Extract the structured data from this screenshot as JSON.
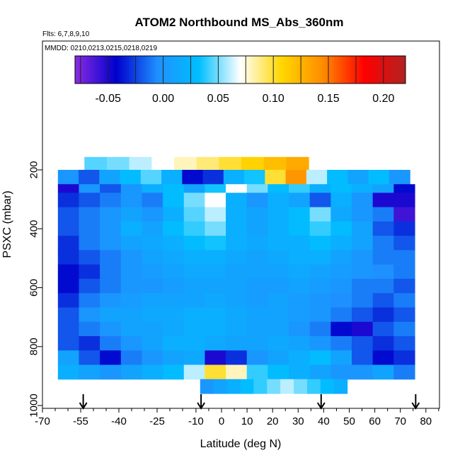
{
  "chart_data": {
    "type": "heatmap",
    "title": "ATOM2 Northbound MS_Abs_360nm",
    "flights_label": "Flts: 6,7,8,9,10",
    "dates_label": "MMDD: 0210,0213,0215,0218,0219",
    "xlabel": "Latitude (deg N)",
    "ylabel": "PSXC (mbar)",
    "xlim": [
      -70,
      85
    ],
    "ylim": [
      1000,
      0
    ],
    "x_ticks": [
      -70,
      -55,
      -40,
      -25,
      -10,
      0,
      10,
      20,
      30,
      40,
      50,
      60,
      70,
      80
    ],
    "x_minor_ticks": [
      -65,
      -60,
      -50,
      -45,
      -35,
      -30,
      -20,
      -15,
      -5,
      5,
      15,
      25,
      35,
      45,
      55,
      65,
      75,
      85
    ],
    "y_ticks": [
      200,
      400,
      600,
      800,
      1000
    ],
    "colorbar": {
      "min": -0.08,
      "max": 0.22,
      "ticks": [
        -0.05,
        0.0,
        0.05,
        0.1,
        0.15,
        0.2
      ],
      "tick_labels": [
        "-0.05",
        "0.00",
        "0.05",
        "0.10",
        "0.15",
        "0.20"
      ],
      "colors": [
        "#8a2be2",
        "#0000cd",
        "#1e90ff",
        "#00bfff",
        "#ffffff",
        "#ffd700",
        "#ff8c00",
        "#ff0000",
        "#b22222"
      ]
    },
    "arrows_latitude": [
      -54,
      -8,
      39,
      76
    ],
    "layers": [
      {
        "p_top": 175,
        "p_bot": 220,
        "x0": -57,
        "x1": 36,
        "values": [
          0.045,
          0.05,
          0.06,
          0.07,
          0.08,
          0.09,
          0.1,
          0.11,
          0.12,
          0.13
        ]
      },
      {
        "p_top": 220,
        "p_bot": 270,
        "x0": -68,
        "x1": 78,
        "values": [
          0.0,
          -0.02,
          0.01,
          0.03,
          0.045,
          0.02,
          -0.04,
          -0.03,
          0.02,
          0.035,
          0.1,
          0.14,
          0.06,
          0.03,
          0.01,
          0.03,
          0.0
        ]
      },
      {
        "p_top": 270,
        "p_bot": 300,
        "x0": -68,
        "x1": 80,
        "values": [
          -0.05,
          0.0,
          -0.02,
          0.0,
          0.02,
          0.03,
          0.01,
          0.035,
          0.07,
          0.05,
          0.03,
          0.04,
          0.02,
          0.03,
          0.02,
          0.01,
          -0.04
        ]
      },
      {
        "p_top": 300,
        "p_bot": 350,
        "x0": -68,
        "x1": 80,
        "values": [
          -0.03,
          -0.02,
          -0.01,
          0.0,
          -0.01,
          0.03,
          0.05,
          0.07,
          0.02,
          0.0,
          0.02,
          0.01,
          -0.02,
          0.02,
          0.0,
          -0.05,
          -0.05
        ]
      },
      {
        "p_top": 350,
        "p_bot": 400,
        "x0": -68,
        "x1": 80,
        "values": [
          -0.02,
          -0.01,
          0.0,
          0.01,
          0.0,
          0.02,
          0.045,
          0.06,
          0.02,
          0.01,
          0.02,
          0.03,
          0.05,
          0.015,
          0.0,
          -0.01,
          -0.06
        ]
      },
      {
        "p_top": 400,
        "p_bot": 450,
        "x0": -68,
        "x1": 80,
        "values": [
          -0.02,
          -0.01,
          0.0,
          0.02,
          0.01,
          0.03,
          0.04,
          0.05,
          0.02,
          0.01,
          0.02,
          0.03,
          0.04,
          0.03,
          0.01,
          -0.02,
          -0.03
        ]
      },
      {
        "p_top": 450,
        "p_bot": 500,
        "x0": -68,
        "x1": 80,
        "values": [
          -0.03,
          -0.01,
          0.0,
          0.01,
          0.015,
          0.02,
          0.03,
          0.035,
          0.02,
          0.015,
          0.02,
          0.02,
          0.03,
          0.02,
          0.01,
          -0.01,
          -0.02
        ]
      },
      {
        "p_top": 500,
        "p_bot": 550,
        "x0": -68,
        "x1": 80,
        "values": [
          -0.03,
          -0.02,
          -0.01,
          0.0,
          0.01,
          0.015,
          0.02,
          0.02,
          0.015,
          0.01,
          0.015,
          0.02,
          0.02,
          0.01,
          0.0,
          -0.01,
          -0.01
        ]
      },
      {
        "p_top": 550,
        "p_bot": 600,
        "x0": -68,
        "x1": 80,
        "values": [
          -0.04,
          -0.03,
          -0.01,
          0.0,
          0.005,
          0.01,
          0.015,
          0.015,
          0.01,
          0.01,
          0.01,
          0.015,
          0.01,
          0.005,
          0.0,
          -0.005,
          -0.01
        ]
      },
      {
        "p_top": 600,
        "p_bot": 650,
        "x0": -68,
        "x1": 80,
        "values": [
          -0.04,
          -0.02,
          -0.01,
          0.0,
          0.0,
          0.005,
          0.01,
          0.01,
          0.01,
          0.005,
          0.005,
          0.01,
          0.005,
          0.0,
          -0.01,
          -0.01,
          -0.02
        ]
      },
      {
        "p_top": 650,
        "p_bot": 700,
        "x0": -68,
        "x1": 80,
        "values": [
          -0.03,
          -0.01,
          0.0,
          0.005,
          0.01,
          0.01,
          0.01,
          0.015,
          0.01,
          0.005,
          0.01,
          0.005,
          0.0,
          -0.005,
          -0.01,
          -0.02,
          -0.01
        ]
      },
      {
        "p_top": 700,
        "p_bot": 750,
        "x0": -68,
        "x1": 80,
        "values": [
          -0.02,
          0.0,
          0.01,
          0.01,
          0.015,
          0.015,
          0.02,
          0.02,
          0.015,
          0.01,
          0.01,
          0.005,
          0.0,
          -0.01,
          -0.02,
          -0.03,
          -0.02
        ]
      },
      {
        "p_top": 750,
        "p_bot": 800,
        "x0": -68,
        "x1": 80,
        "values": [
          -0.02,
          -0.01,
          0.0,
          0.01,
          0.01,
          0.015,
          0.02,
          0.02,
          0.015,
          0.01,
          0.01,
          0.0,
          -0.01,
          -0.04,
          -0.05,
          -0.02,
          -0.01
        ]
      },
      {
        "p_top": 800,
        "p_bot": 850,
        "x0": -68,
        "x1": 80,
        "values": [
          -0.02,
          -0.03,
          -0.01,
          0.0,
          0.01,
          0.02,
          0.02,
          0.015,
          0.01,
          0.01,
          0.015,
          0.01,
          0.0,
          -0.01,
          -0.02,
          -0.03,
          -0.02
        ]
      },
      {
        "p_top": 850,
        "p_bot": 900,
        "x0": -68,
        "x1": 80,
        "values": [
          0.01,
          -0.02,
          -0.04,
          -0.01,
          0.0,
          0.01,
          0.015,
          -0.05,
          -0.03,
          0.0,
          0.01,
          0.02,
          0.03,
          0.01,
          -0.02,
          -0.04,
          -0.03
        ]
      },
      {
        "p_top": 900,
        "p_bot": 950,
        "x0": -68,
        "x1": 80,
        "values": [
          0.02,
          0.01,
          0.0,
          0.01,
          0.02,
          0.03,
          0.06,
          0.1,
          0.08,
          0.04,
          0.03,
          0.02,
          0.01,
          0.0,
          0.0,
          0.01,
          -0.01
        ]
      },
      {
        "p_top": 950,
        "p_bot": 1000,
        "x0": -9,
        "x1": 52,
        "values": [
          0.0,
          0.01,
          0.02,
          0.03,
          0.04,
          0.05,
          0.06,
          0.05,
          0.04,
          0.03,
          0.02
        ]
      }
    ]
  }
}
